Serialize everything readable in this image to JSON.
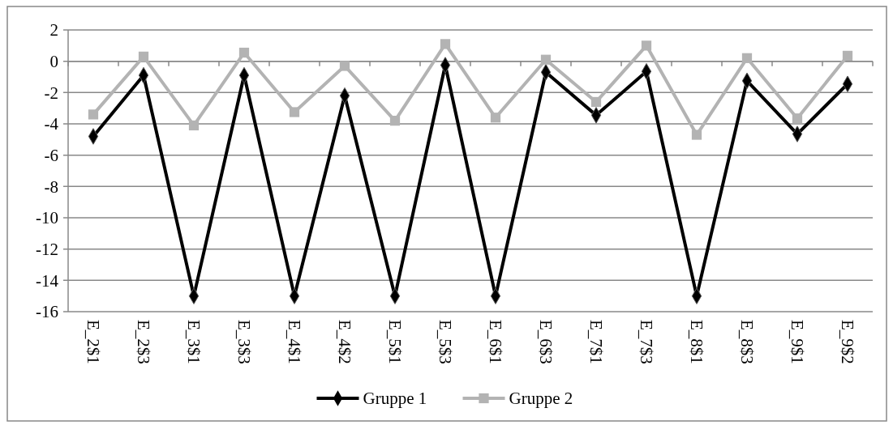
{
  "chart_data": {
    "type": "line",
    "categories": [
      "E_2$1",
      "E_2$3",
      "E_3$1",
      "E_3$3",
      "E_4$1",
      "E_4$2",
      "E_5$1",
      "E_5$3",
      "E_6$1",
      "E_6$3",
      "E_7$1",
      "E_7$3",
      "E_8$1",
      "E_8$3",
      "E_9$1",
      "E_9$2"
    ],
    "series": [
      {
        "name": "Gruppe 1",
        "color": "#000000",
        "marker": "diamond",
        "values": [
          -4.8,
          -0.9,
          -15,
          -0.9,
          -15,
          -2.2,
          -15,
          -0.25,
          -15,
          -0.7,
          -3.45,
          -0.65,
          -15,
          -1.25,
          -4.65,
          -1.45
        ]
      },
      {
        "name": "Gruppe 2",
        "color": "#b3b3b3",
        "marker": "square",
        "values": [
          -3.4,
          0.3,
          -4.1,
          0.55,
          -3.25,
          -0.3,
          -3.8,
          1.1,
          -3.6,
          0.1,
          -2.6,
          1.0,
          -4.7,
          0.2,
          -3.65,
          0.35
        ]
      }
    ],
    "ylim": [
      -16,
      2
    ],
    "yticks": [
      -16,
      -14,
      -12,
      -10,
      -8,
      -6,
      -4,
      -2,
      0,
      2
    ],
    "grid": "y",
    "legend": "bottom",
    "line_style": "solid"
  }
}
